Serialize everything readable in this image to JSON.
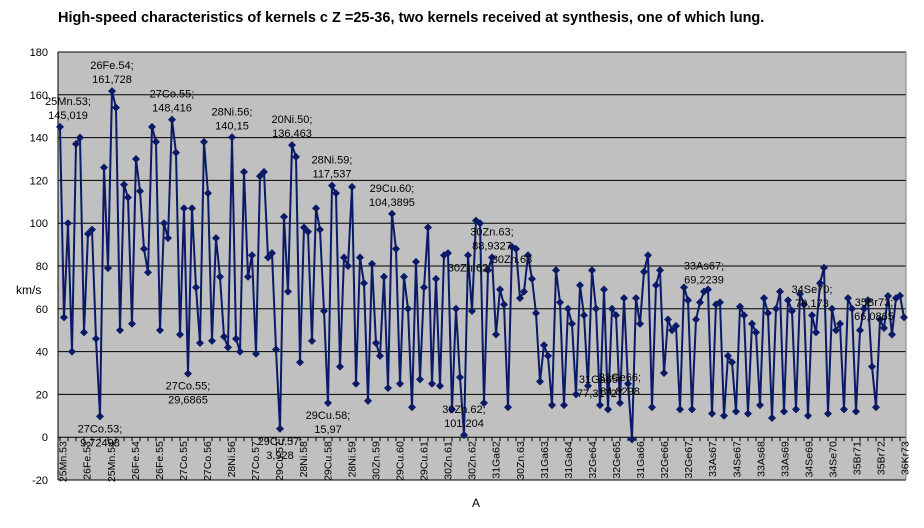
{
  "chart_data": {
    "type": "line",
    "title": "High-speed characteristics of kernels c Z =25-36, two kernels received at synthesis, one of which lung.",
    "xlabel": "A",
    "ylabel": "km/s",
    "ylim": [
      -20,
      180
    ],
    "y_ticks": [
      -20,
      0,
      20,
      40,
      60,
      80,
      100,
      120,
      140,
      160,
      180
    ],
    "grid": true,
    "legend": "none",
    "colors": {
      "line": "#0a1a66",
      "marker": "#0a1a66",
      "plot_bg": "#c0c0c0",
      "grid": "#000000"
    },
    "x_tick_labels": [
      "25Mn.53",
      "26Fe.53",
      "25Mn.54",
      "26Fe.54",
      "26Fe.55",
      "27Co.55",
      "27Co.56",
      "28Ni.56",
      "27Co.57",
      "29Cu.57",
      "28Ni.58",
      "29Cu.58",
      "28Ni.59",
      "30Zn.59",
      "29Cu.60",
      "29Cu.61",
      "30Zn.61",
      "30Zn.62",
      "31Ga62",
      "30Zn.63",
      "31Ga63",
      "31Ga64",
      "32Ge64",
      "32Ge65",
      "31Ga66",
      "32Ge66",
      "32Ge67",
      "33As67",
      "34Se67",
      "33As68",
      "33As69",
      "34Se69",
      "34Se70",
      "35Br71",
      "35Br72",
      "36Kr73"
    ],
    "values": [
      145.019,
      56,
      100,
      40,
      137,
      140,
      49,
      95,
      97,
      46,
      9.72,
      126,
      79,
      161.728,
      154,
      50,
      118,
      112,
      53,
      130,
      115,
      88,
      77,
      145,
      138,
      50,
      100,
      93,
      148.416,
      133,
      48,
      107,
      29.69,
      107,
      70,
      44,
      138,
      114,
      45,
      93,
      75,
      47,
      42,
      140.15,
      46,
      40,
      124,
      75,
      85,
      39,
      122,
      124,
      84,
      86,
      41,
      3.928,
      103,
      68,
      136.463,
      131,
      35,
      98,
      96,
      45,
      107,
      97,
      59,
      15.97,
      117.537,
      114,
      33,
      84,
      80,
      117,
      25,
      84,
      72,
      17,
      81,
      44,
      38,
      75,
      23,
      104.39,
      88,
      25,
      75,
      60,
      14,
      82,
      27,
      70,
      98,
      25,
      74,
      24,
      85,
      86,
      13,
      60,
      28,
      1,
      85,
      59,
      101.204,
      100,
      16,
      78,
      84,
      48,
      69,
      62,
      14,
      88.93,
      88,
      65,
      68,
      85,
      74,
      58,
      26,
      43,
      38,
      15,
      78,
      63,
      15,
      60,
      53,
      20,
      71,
      57,
      24,
      78,
      60,
      15,
      69,
      13,
      60,
      57,
      16,
      65,
      25,
      -1,
      65,
      53,
      77.317,
      85,
      14,
      71,
      78,
      30,
      55,
      50,
      52,
      13,
      70,
      64,
      13,
      55,
      63,
      68,
      69,
      11,
      62,
      63,
      10,
      38,
      35,
      12,
      61,
      57,
      11,
      53,
      49,
      15,
      65,
      58,
      9,
      60,
      68,
      12,
      64,
      59,
      13,
      67,
      62,
      10,
      57,
      49,
      72,
      79.173,
      11,
      60,
      50,
      53,
      13,
      65,
      60,
      12,
      50,
      60,
      64,
      33,
      14,
      55,
      51,
      66,
      48,
      65,
      66.087,
      56
    ],
    "annotations": [
      {
        "text": [
          "25Mn.53;",
          "145,019"
        ],
        "index": 0
      },
      {
        "text": [
          "26Fe.54;",
          "161,728"
        ],
        "index": 13
      },
      {
        "text": [
          "27Co.55;",
          "148,416"
        ],
        "index": 28
      },
      {
        "text": [
          "28Ni.56;",
          "140,15"
        ],
        "index": 43
      },
      {
        "text": [
          "20Ni.50;",
          "136,463"
        ],
        "index": 58
      },
      {
        "text": [
          "28Ni.59;",
          "117,537"
        ],
        "index": 68
      },
      {
        "text": [
          "29Cu.60;",
          "104,3895"
        ],
        "index": 83
      },
      {
        "text": [
          "30Zn.62;",
          "101,204"
        ],
        "index": 101
      },
      {
        "text": [
          "30Zn.62"
        ],
        "index": 102,
        "below": true
      },
      {
        "text": [
          "30Zn.63;",
          "88,9327"
        ],
        "index": 108
      },
      {
        "text": [
          "31Ga65;",
          "77,31727"
        ],
        "index": 135
      },
      {
        "text": [
          "32Ge66;",
          "84,8298"
        ],
        "index": 140
      },
      {
        "text": [
          "33As67;",
          "69,2239"
        ],
        "index": 161
      },
      {
        "text": [
          "34Se70;",
          "79,173"
        ],
        "index": 188
      },
      {
        "text": [
          "35Br73;",
          "66,0865"
        ],
        "index": 206
      },
      {
        "text": [
          "27Co.53;",
          "9,72498"
        ],
        "index": 10,
        "below": true
      },
      {
        "text": [
          "27Co.55;",
          "29,6865"
        ],
        "index": 32,
        "below": true
      },
      {
        "text": [
          "29Cu.57;",
          "3,928"
        ],
        "index": 55,
        "below": true
      },
      {
        "text": [
          "29Cu.58;",
          "15,97"
        ],
        "index": 67,
        "below": true
      },
      {
        "text": [
          "30Zn.63"
        ],
        "index": 113,
        "below": true
      }
    ]
  }
}
